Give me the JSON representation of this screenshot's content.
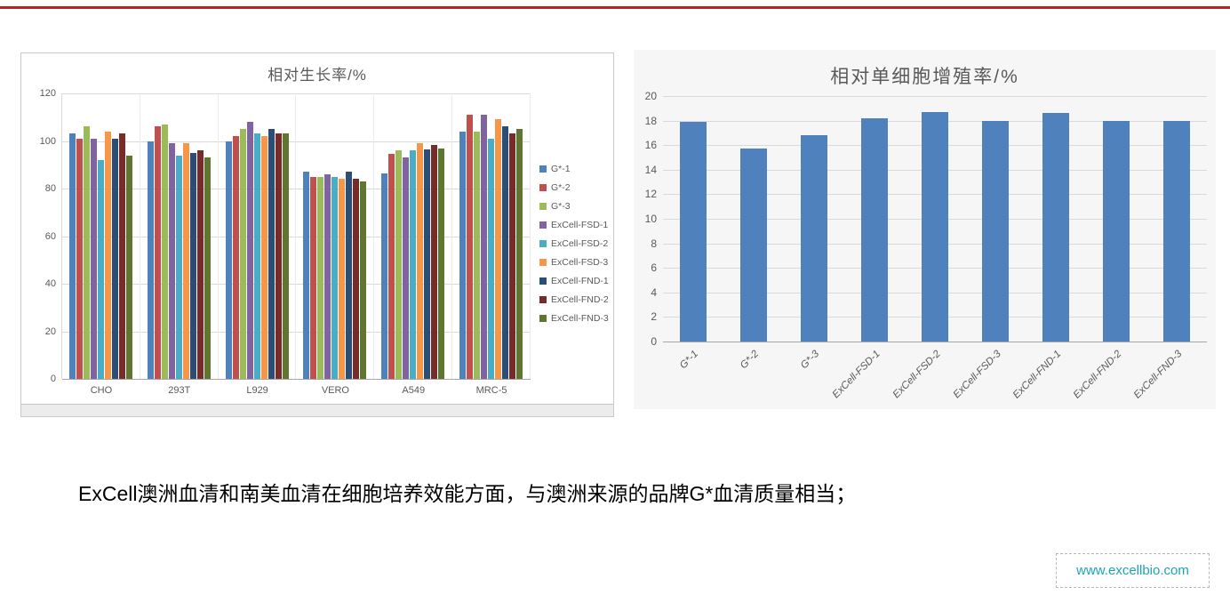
{
  "page": {
    "top_line_color": "#b7231f"
  },
  "caption": "ExCell澳洲血清和南美血清在细胞培养效能方面，与澳洲来源的品牌G*血清质量相当；",
  "footer": {
    "url": "www.excellbio.com",
    "url_color": "#1fa4b2"
  },
  "chart_data": [
    {
      "type": "bar",
      "title": "相对生长率/%",
      "categories": [
        "CHO",
        "293T",
        "L929",
        "VERO",
        "A549",
        "MRC-5"
      ],
      "series": [
        {
          "name": "G*-1",
          "color": "#4F81BD",
          "values": [
            103,
            100,
            100,
            87,
            86.5,
            104
          ]
        },
        {
          "name": "G*-2",
          "color": "#C0504D",
          "values": [
            101,
            106,
            102,
            85,
            94.5,
            111
          ]
        },
        {
          "name": "G*-3",
          "color": "#9BBB59",
          "values": [
            106,
            107,
            105,
            85,
            96,
            104
          ]
        },
        {
          "name": "ExCell-FSD-1",
          "color": "#8064A2",
          "values": [
            101,
            99,
            108,
            86,
            93,
            111
          ]
        },
        {
          "name": "ExCell-FSD-2",
          "color": "#4BACC6",
          "values": [
            92,
            94,
            103,
            85,
            96,
            101
          ]
        },
        {
          "name": "ExCell-FSD-3",
          "color": "#F79646",
          "values": [
            104,
            99,
            102,
            84,
            99,
            109
          ]
        },
        {
          "name": "ExCell-FND-1",
          "color": "#2C4D75",
          "values": [
            101,
            95,
            105,
            87,
            96.5,
            106
          ]
        },
        {
          "name": "ExCell-FND-2",
          "color": "#772C2A",
          "values": [
            103,
            96,
            103,
            84,
            98.5,
            103
          ]
        },
        {
          "name": "ExCell-FND-3",
          "color": "#5F7530",
          "values": [
            94,
            93,
            103,
            83,
            97,
            105
          ]
        }
      ],
      "ylim": [
        0,
        120
      ],
      "ytick_step": 20,
      "grid": true,
      "legend_position": "right"
    },
    {
      "type": "bar",
      "title": "相对单细胞增殖率/%",
      "categories": [
        "G*-1",
        "G*-2",
        "G*-3",
        "ExCell-FSD-1",
        "ExCell-FSD-2",
        "ExCell-FSD-3",
        "ExCell-FND-1",
        "ExCell-FND-2",
        "ExCell-FND-3"
      ],
      "values": [
        17.9,
        15.7,
        16.8,
        18.2,
        18.7,
        18,
        18.6,
        18,
        18
      ],
      "bar_color": "#4F81BD",
      "ylim": [
        0,
        20
      ],
      "ytick_step": 2,
      "grid": true,
      "legend_position": "none",
      "xlabel_rotation": -45
    }
  ]
}
